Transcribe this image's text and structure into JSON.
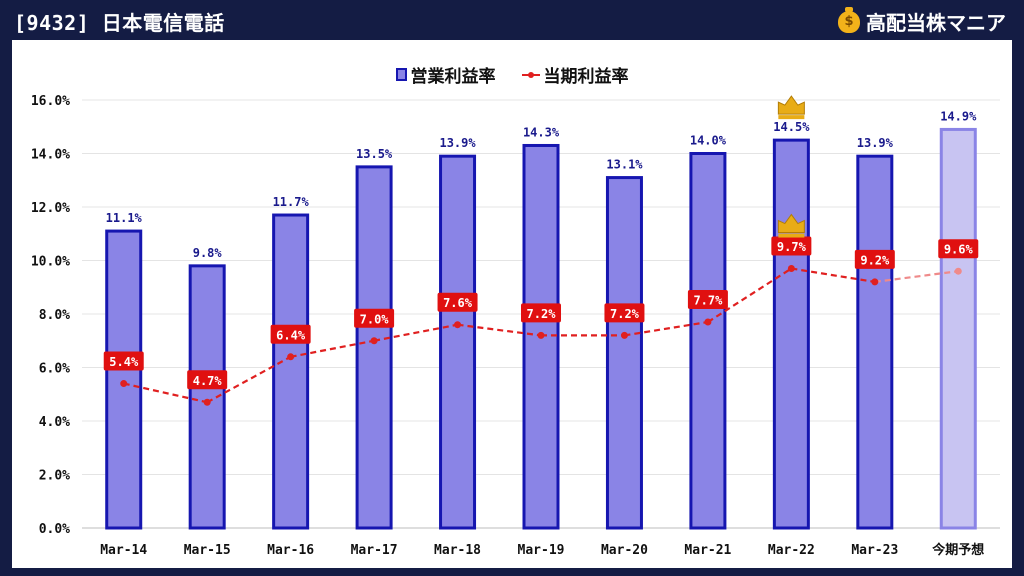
{
  "header": {
    "code_title": "[9432] 日本電信電話",
    "brand_icon": "money-bag-icon",
    "brand_name": "高配当株マニア"
  },
  "chart_data": {
    "type": "bar",
    "categories": [
      "Mar-14",
      "Mar-15",
      "Mar-16",
      "Mar-17",
      "Mar-18",
      "Mar-19",
      "Mar-20",
      "Mar-21",
      "Mar-22",
      "Mar-23",
      "今期予想"
    ],
    "series": [
      {
        "name": "営業利益率",
        "type": "bar",
        "values": [
          11.1,
          9.8,
          11.7,
          13.5,
          13.9,
          14.3,
          13.1,
          14.0,
          14.5,
          13.9,
          14.9
        ],
        "labels": [
          "11.1%",
          "9.8%",
          "11.7%",
          "13.5%",
          "13.9%",
          "14.3%",
          "13.1%",
          "14.0%",
          "14.5%",
          "13.9%",
          "14.9%"
        ],
        "color": "#8a84e6",
        "border_color": "#1616b0",
        "forecast_color": "#c8c4f2",
        "forecast_border_color": "#8a84e6"
      },
      {
        "name": "当期利益率",
        "type": "line",
        "values": [
          5.4,
          4.7,
          6.4,
          7.0,
          7.6,
          7.2,
          7.2,
          7.7,
          9.7,
          9.2,
          9.6
        ],
        "labels": [
          "5.4%",
          "4.7%",
          "6.4%",
          "7.0%",
          "7.6%",
          "7.2%",
          "7.2%",
          "7.7%",
          "9.7%",
          "9.2%",
          "9.6%"
        ],
        "color": "#e02020",
        "forecast_color": "#ef8a8a"
      }
    ],
    "forecast_category": "今期予想",
    "highlight": {
      "category": "Mar-22",
      "marker": "crown-icon",
      "color": "#e8ac16"
    },
    "y_ticks": [
      "0.0%",
      "2.0%",
      "4.0%",
      "6.0%",
      "8.0%",
      "10.0%",
      "12.0%",
      "14.0%",
      "16.0%"
    ],
    "ylim": [
      0,
      16
    ],
    "grid": true,
    "legend_position": "top-center",
    "xlabel": "",
    "ylabel": ""
  }
}
